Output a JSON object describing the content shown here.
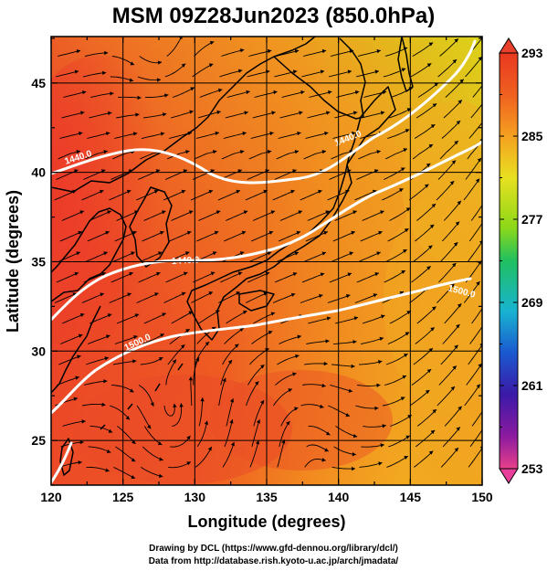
{
  "title": "MSM 09Z28Jun2023 (850.0hPa)",
  "axes": {
    "xlabel": "Longitude (degrees)",
    "ylabel": "Latitude  (degrees)",
    "xlim": [
      120,
      150
    ],
    "ylim": [
      22.5,
      47.6
    ],
    "xticks": [
      "120",
      "125",
      "130",
      "135",
      "140",
      "145",
      "150"
    ],
    "yticks": [
      "25",
      "30",
      "35",
      "40",
      "45"
    ],
    "grid": true
  },
  "colorbar": {
    "labels": [
      "293",
      "285",
      "277",
      "269",
      "261",
      "253"
    ],
    "range": [
      253,
      293
    ],
    "colors": [
      "#e8408a",
      "#8a1aa0",
      "#3a1aa8",
      "#1a5ad0",
      "#18b4d0",
      "#20c060",
      "#8cd818",
      "#e8e020",
      "#f5a020",
      "#f06020",
      "#e83820"
    ]
  },
  "contours": {
    "color": "#ffffff",
    "labels": [
      "1440.0",
      "1440.0",
      "1440.0",
      "1500.0",
      "1500.0"
    ]
  },
  "credits": {
    "line1": "Drawing by DCL (https://www.gfd-dennou.org/library/dcl/)",
    "line2": "Data from http://database.rish.kyoto-u.ac.jp/arch/jmadata/"
  }
}
